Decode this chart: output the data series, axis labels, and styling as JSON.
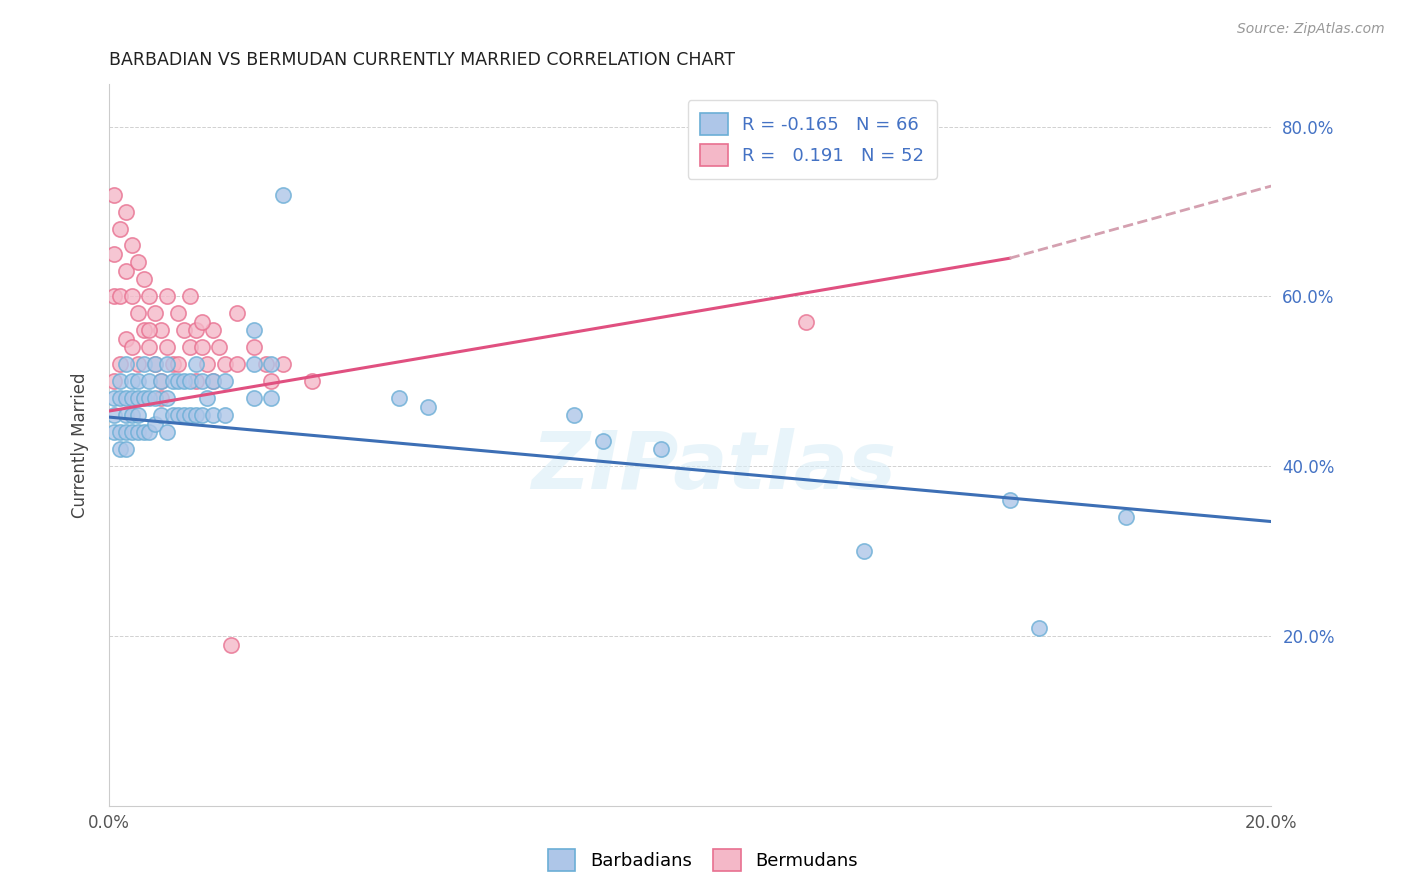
{
  "title": "BARBADIAN VS BERMUDAN CURRENTLY MARRIED CORRELATION CHART",
  "source": "Source: ZipAtlas.com",
  "ylabel": "Currently Married",
  "watermark": "ZIPatlas",
  "xlim": [
    0.0,
    0.2
  ],
  "ylim": [
    0.0,
    0.85
  ],
  "barbadians_face": "#aec6e8",
  "barbadians_edge": "#6baed6",
  "bermudans_face": "#f4b8c8",
  "bermudans_edge": "#e87090",
  "blue_line_color": "#3d6fb5",
  "pink_line_color": "#e05080",
  "dashed_line_color": "#d4a0b0",
  "right_tick_color": "#4472c4",
  "barbadians_x": [
    0.001,
    0.001,
    0.001,
    0.002,
    0.002,
    0.002,
    0.002,
    0.003,
    0.003,
    0.003,
    0.003,
    0.003,
    0.004,
    0.004,
    0.004,
    0.004,
    0.005,
    0.005,
    0.005,
    0.005,
    0.006,
    0.006,
    0.006,
    0.007,
    0.007,
    0.007,
    0.008,
    0.008,
    0.008,
    0.009,
    0.009,
    0.01,
    0.01,
    0.01,
    0.011,
    0.011,
    0.012,
    0.012,
    0.013,
    0.013,
    0.014,
    0.014,
    0.015,
    0.015,
    0.016,
    0.016,
    0.017,
    0.018,
    0.018,
    0.02,
    0.02,
    0.025,
    0.025,
    0.025,
    0.028,
    0.028,
    0.03,
    0.05,
    0.055,
    0.08,
    0.085,
    0.095,
    0.13,
    0.155,
    0.16,
    0.175
  ],
  "barbadians_y": [
    0.48,
    0.46,
    0.44,
    0.5,
    0.48,
    0.44,
    0.42,
    0.52,
    0.48,
    0.46,
    0.44,
    0.42,
    0.5,
    0.48,
    0.46,
    0.44,
    0.5,
    0.48,
    0.46,
    0.44,
    0.52,
    0.48,
    0.44,
    0.5,
    0.48,
    0.44,
    0.52,
    0.48,
    0.45,
    0.5,
    0.46,
    0.52,
    0.48,
    0.44,
    0.5,
    0.46,
    0.5,
    0.46,
    0.5,
    0.46,
    0.5,
    0.46,
    0.52,
    0.46,
    0.5,
    0.46,
    0.48,
    0.5,
    0.46,
    0.5,
    0.46,
    0.56,
    0.52,
    0.48,
    0.52,
    0.48,
    0.72,
    0.48,
    0.47,
    0.46,
    0.43,
    0.42,
    0.3,
    0.36,
    0.21,
    0.34
  ],
  "bermudans_x": [
    0.001,
    0.001,
    0.001,
    0.001,
    0.002,
    0.002,
    0.002,
    0.003,
    0.003,
    0.003,
    0.004,
    0.004,
    0.004,
    0.005,
    0.005,
    0.005,
    0.006,
    0.006,
    0.007,
    0.007,
    0.008,
    0.008,
    0.009,
    0.009,
    0.01,
    0.01,
    0.011,
    0.012,
    0.012,
    0.013,
    0.014,
    0.014,
    0.015,
    0.015,
    0.016,
    0.017,
    0.018,
    0.018,
    0.02,
    0.022,
    0.022,
    0.025,
    0.027,
    0.028,
    0.03,
    0.035,
    0.12,
    0.009,
    0.019,
    0.007,
    0.016,
    0.021
  ],
  "bermudans_y": [
    0.72,
    0.65,
    0.6,
    0.5,
    0.68,
    0.6,
    0.52,
    0.7,
    0.63,
    0.55,
    0.66,
    0.6,
    0.54,
    0.64,
    0.58,
    0.52,
    0.62,
    0.56,
    0.6,
    0.54,
    0.58,
    0.52,
    0.56,
    0.5,
    0.6,
    0.54,
    0.52,
    0.58,
    0.52,
    0.56,
    0.6,
    0.54,
    0.56,
    0.5,
    0.54,
    0.52,
    0.56,
    0.5,
    0.52,
    0.58,
    0.52,
    0.54,
    0.52,
    0.5,
    0.52,
    0.5,
    0.57,
    0.48,
    0.54,
    0.56,
    0.57,
    0.19
  ],
  "blue_line_x": [
    0.0,
    0.2
  ],
  "blue_line_y": [
    0.458,
    0.335
  ],
  "pink_line_x": [
    0.0,
    0.155
  ],
  "pink_line_y": [
    0.465,
    0.645
  ],
  "dash_line_x": [
    0.155,
    0.2
  ],
  "dash_line_y": [
    0.645,
    0.73
  ]
}
